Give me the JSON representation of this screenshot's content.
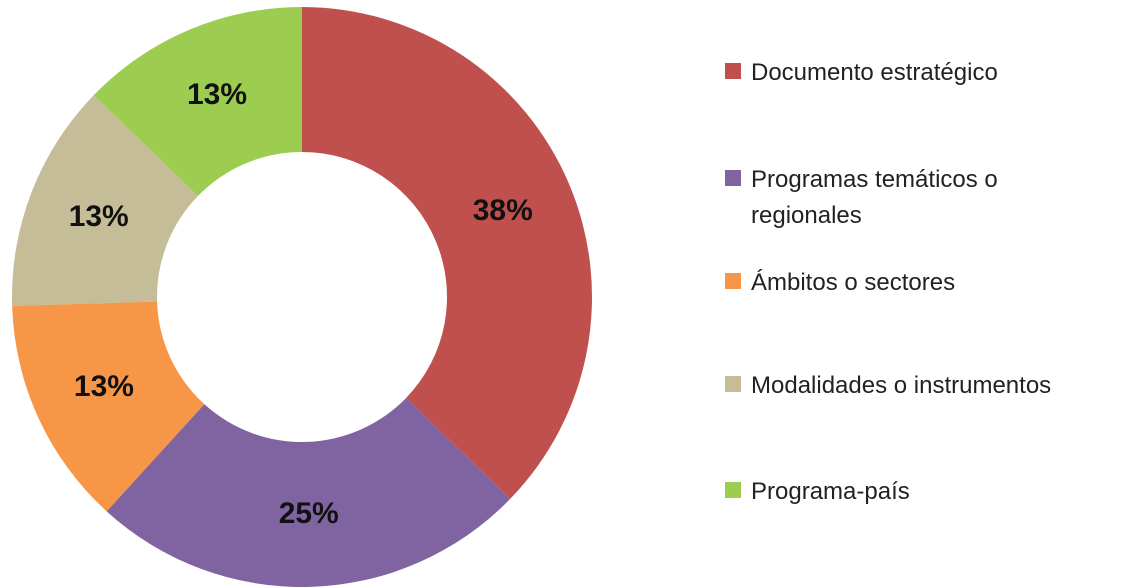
{
  "chart_data": {
    "type": "donut",
    "categories": [
      "Documento estratégico",
      "Programas temáticos o regionales",
      "Ámbitos o sectores",
      "Modalidades o instrumentos",
      "Programa-país"
    ],
    "values": [
      38,
      25,
      13,
      13,
      13
    ],
    "value_labels": [
      "38%",
      "25%",
      "13%",
      "13%",
      "13%"
    ],
    "colors": [
      "#c0504d",
      "#8064a2",
      "#f79646",
      "#c4bd97",
      "#9ccc50"
    ],
    "legend": "right"
  }
}
